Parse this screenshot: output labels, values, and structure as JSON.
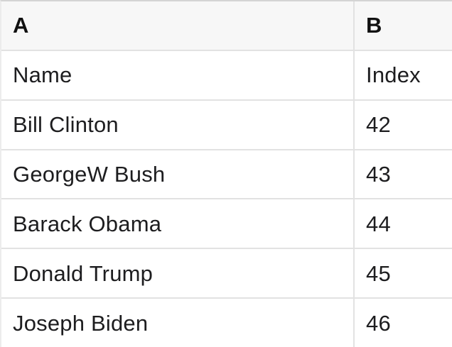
{
  "table": {
    "column_headers": [
      {
        "label": "A"
      },
      {
        "label": "B"
      }
    ],
    "rows": [
      {
        "A": "Name",
        "B": "Index"
      },
      {
        "A": "Bill Clinton",
        "B": "42"
      },
      {
        "A": "GeorgeW Bush",
        "B": "43"
      },
      {
        "A": "Barack Obama",
        "B": "44"
      },
      {
        "A": "Donald Trump",
        "B": "45"
      },
      {
        "A": "Joseph Biden",
        "B": "46"
      }
    ]
  },
  "colors": {
    "header_background": "#f7f7f7",
    "grid_line": "#e2e2e2",
    "top_border": "#d4d4d4",
    "left_border": "#ececec",
    "text": "#1d1d1f",
    "row_background": "#ffffff"
  }
}
